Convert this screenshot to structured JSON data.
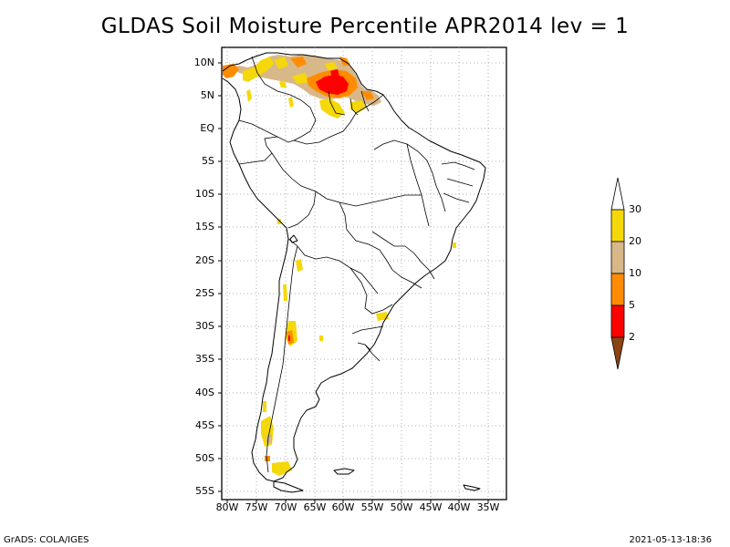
{
  "title": "GLDAS Soil Moisture Percentile APR2014 lev = 1",
  "footer": {
    "left": "GrADS: COLA/IGES",
    "right": "2021-05-13-18:36"
  },
  "map": {
    "region": "South America",
    "projection": "lat-lon",
    "lon_range": [
      -81,
      -32
    ],
    "lat_range": [
      -56,
      12
    ],
    "grid": "dotted",
    "lat_labels": [
      "10N",
      "5N",
      "EQ",
      "5S",
      "10S",
      "15S",
      "20S",
      "25S",
      "30S",
      "35S",
      "40S",
      "45S",
      "50S",
      "55S"
    ],
    "lon_labels": [
      "80W",
      "75W",
      "70W",
      "65W",
      "60W",
      "55W",
      "50W",
      "45W",
      "40W",
      "35W"
    ]
  },
  "colorbar": {
    "labels": [
      "30",
      "20",
      "10",
      "5",
      "2"
    ],
    "colors": {
      "above_30": "#ffffff",
      "20_30": "#f5d80a",
      "10_20": "#d8b888",
      "5_10": "#ff8c00",
      "2_5": "#ff0000",
      "below_2": "#8b4513"
    }
  }
}
